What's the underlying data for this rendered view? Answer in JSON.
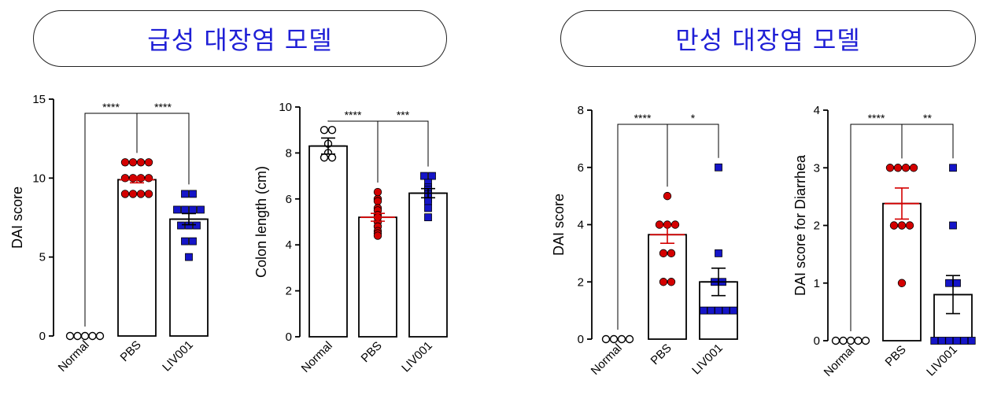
{
  "headers": {
    "acute": "급성 대장염 모델",
    "chronic": "만성 대장염 모델"
  },
  "colors": {
    "header_text": "#1f1fd6",
    "normal_marker": "#ffffff",
    "pbs_marker": "#d40000",
    "liv_marker": "#1515c8"
  },
  "chart_data": [
    {
      "type": "bar",
      "panel": "acute",
      "categories": [
        "Normal",
        "PBS",
        "LIV001"
      ],
      "ylabel": "DAI score",
      "xlabel": "",
      "ylim": [
        0,
        15
      ],
      "yticks": [
        0,
        5,
        10,
        15
      ],
      "means": [
        0,
        9.9,
        7.4
      ],
      "sem": [
        0,
        0.2,
        0.35
      ],
      "points": [
        [
          0,
          0,
          0,
          0,
          0
        ],
        [
          11,
          11,
          11,
          11,
          10,
          10,
          10,
          10,
          9,
          9,
          9,
          9
        ],
        [
          9,
          9,
          8,
          8,
          8,
          8,
          7,
          7,
          7,
          6,
          6,
          5
        ]
      ],
      "significance": [
        {
          "from": 0,
          "to": 1,
          "label": "****"
        },
        {
          "from": 1,
          "to": 2,
          "label": "****"
        }
      ]
    },
    {
      "type": "bar",
      "panel": "acute",
      "categories": [
        "Normal",
        "PBS",
        "LIV001"
      ],
      "ylabel": "Colon length (cm)",
      "xlabel": "",
      "ylim": [
        0,
        10
      ],
      "yticks": [
        0,
        2,
        4,
        6,
        8,
        10
      ],
      "means": [
        8.3,
        5.2,
        6.25
      ],
      "sem": [
        0.35,
        0.17,
        0.2
      ],
      "points": [
        [
          9.0,
          9.0,
          8.4,
          8.0,
          7.8,
          7.8
        ],
        [
          6.3,
          6.0,
          5.9,
          5.6,
          5.5,
          5.3,
          5.2,
          5.0,
          4.8,
          4.6,
          4.5,
          4.4
        ],
        [
          7.0,
          7.0,
          6.7,
          6.5,
          6.4,
          6.3,
          6.2,
          6.0,
          5.9,
          5.6,
          5.2
        ]
      ],
      "significance": [
        {
          "from": 0,
          "to": 1,
          "label": "****"
        },
        {
          "from": 1,
          "to": 2,
          "label": "***"
        }
      ]
    },
    {
      "type": "bar",
      "panel": "chronic",
      "categories": [
        "Normal",
        "PBS",
        "LIV001"
      ],
      "ylabel": "DAI score",
      "xlabel": "",
      "ylim": [
        0,
        8
      ],
      "yticks": [
        0,
        2,
        4,
        6,
        8
      ],
      "means": [
        0,
        3.65,
        2.0
      ],
      "sem": [
        0,
        0.3,
        0.48
      ],
      "points": [
        [
          0,
          0,
          0,
          0
        ],
        [
          5,
          4,
          4,
          4,
          3,
          3,
          2,
          2
        ],
        [
          6,
          3,
          2,
          2,
          1,
          1,
          1,
          1,
          1
        ]
      ],
      "significance": [
        {
          "from": 0,
          "to": 1,
          "label": "****"
        },
        {
          "from": 1,
          "to": 2,
          "label": "*"
        }
      ]
    },
    {
      "type": "bar",
      "panel": "chronic",
      "categories": [
        "Normal",
        "PBS",
        "LIV001"
      ],
      "ylabel": "DAI score for Diarrhea",
      "xlabel": "",
      "ylim": [
        0,
        4
      ],
      "yticks": [
        0,
        1,
        2,
        3,
        4
      ],
      "means": [
        0,
        2.38,
        0.8
      ],
      "sem": [
        0,
        0.27,
        0.33
      ],
      "points": [
        [
          0,
          0,
          0,
          0,
          0
        ],
        [
          3,
          3,
          3,
          3,
          2,
          2,
          2,
          1
        ],
        [
          3,
          2,
          1,
          1,
          0,
          0,
          0,
          0,
          0,
          0
        ]
      ],
      "significance": [
        {
          "from": 0,
          "to": 1,
          "label": "****"
        },
        {
          "from": 1,
          "to": 2,
          "label": "**"
        }
      ]
    }
  ]
}
